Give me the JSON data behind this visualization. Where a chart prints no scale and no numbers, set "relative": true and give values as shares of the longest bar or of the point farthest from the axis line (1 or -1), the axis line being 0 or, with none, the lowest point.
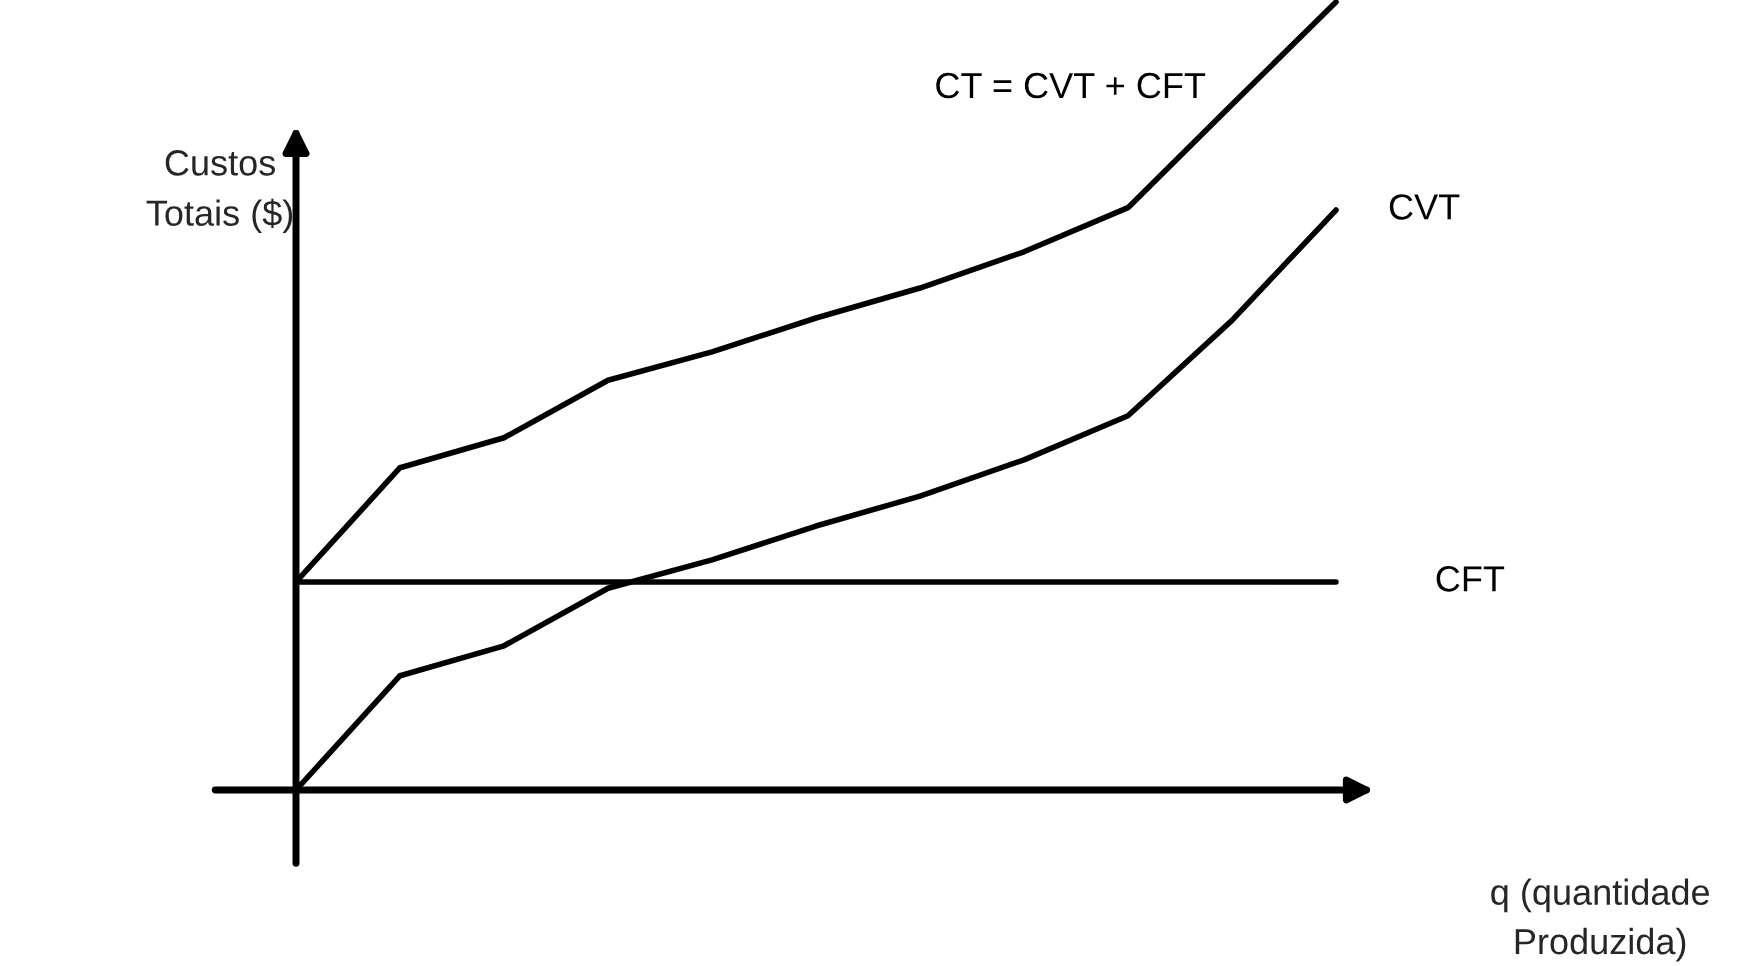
{
  "chart_data": {
    "type": "line",
    "relative": true,
    "xlabel": "q (quantidade\nProduzida)",
    "ylabel": "Custos\nTotais ($)",
    "categories": [
      null,
      null,
      null,
      null,
      null,
      null,
      null,
      null,
      null,
      null,
      null
    ],
    "series": [
      {
        "name": "CT = CVT + CFT",
        "color": "#000000",
        "values": [
          0.264,
          0.409,
          0.447,
          0.52,
          0.556,
          0.599,
          0.637,
          0.683,
          0.739,
          0.87,
          1.0
        ]
      },
      {
        "name": "CVT",
        "color": "#000000",
        "values": [
          0,
          0.145,
          0.183,
          0.256,
          0.292,
          0.335,
          0.373,
          0.419,
          0.475,
          0.596,
          0.736
        ]
      },
      {
        "name": "CFT",
        "color": "#000000",
        "values": [
          0.264,
          0.264,
          0.264,
          0.264,
          0.264,
          0.264,
          0.264,
          0.264,
          0.264,
          0.264,
          0.264
        ]
      }
    ],
    "legend": false,
    "tick_labels": false,
    "marker": "none",
    "line_style": "solid"
  }
}
